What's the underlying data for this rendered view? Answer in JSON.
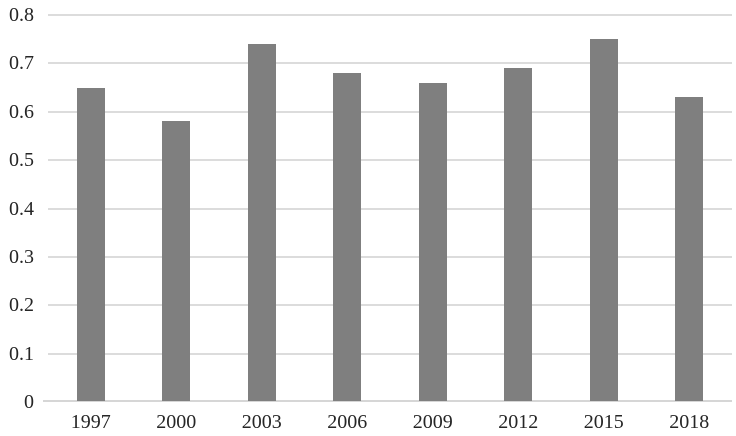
{
  "chart_data": {
    "type": "bar",
    "title": "",
    "xlabel": "",
    "ylabel": "",
    "categories": [
      "1997",
      "2000",
      "2003",
      "2006",
      "2009",
      "2012",
      "2015",
      "2018"
    ],
    "values": [
      0.65,
      0.58,
      0.74,
      0.68,
      0.66,
      0.69,
      0.75,
      0.63
    ],
    "ylim": [
      0,
      0.8
    ],
    "ytick_labels": [
      "0",
      "0.1",
      "0.2",
      "0.3",
      "0.4",
      "0.5",
      "0.6",
      "0.7",
      "0.8"
    ],
    "grid": true,
    "legend": false,
    "colors": {
      "bar_fill": "#7f7f7f",
      "gridline": "#dcdcdc",
      "axis_line": "#d6d6d6",
      "tick_text": "#262626",
      "background": "#ffffff"
    }
  }
}
